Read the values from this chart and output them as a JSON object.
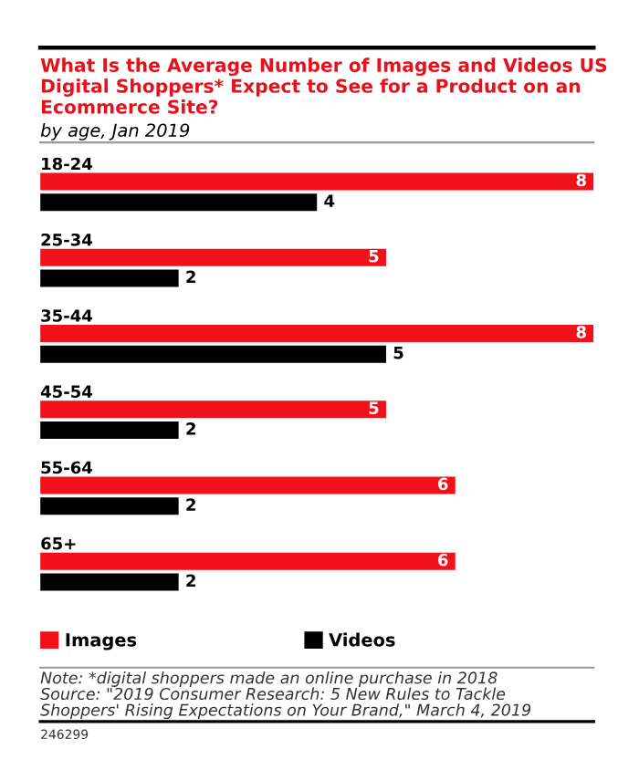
{
  "chart_data": {
    "type": "bar",
    "orientation": "horizontal",
    "title": "What Is the Average Number of Images and Videos US Digital Shoppers* Expect to See for a Product on an Ecommerce Site?",
    "subtitle": "by age, Jan 2019",
    "categories": [
      "18-24",
      "25-34",
      "35-44",
      "45-54",
      "55-64",
      "65+"
    ],
    "series": [
      {
        "name": "Images",
        "color": "#f2111a",
        "values": [
          8,
          5,
          8,
          5,
          6,
          6
        ]
      },
      {
        "name": "Videos",
        "color": "#000000",
        "values": [
          4,
          2,
          5,
          2,
          2,
          2
        ]
      }
    ],
    "data_labels": true,
    "legend": "bottom",
    "annotations": [
      "Note: *digital shoppers made an online purchase in 2018\nSource: \"2019 Consumer Research: 5 New Rules to Tackle\nShoppers' Rising Expectations on Your Brand,\" March 4, 2019",
      "246299"
    ]
  }
}
